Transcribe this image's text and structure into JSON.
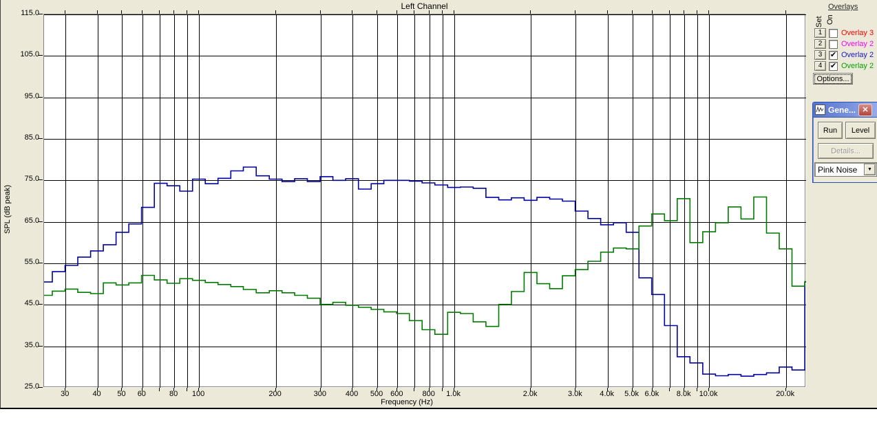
{
  "chart_data": {
    "type": "line",
    "subtype": "rta-stepped-spectrum",
    "title": "Left Channel",
    "xlabel": "Frequency (Hz)",
    "ylabel": "SPL (dB peak)",
    "x_scale": "log",
    "xlim": [
      24.7,
      24000
    ],
    "ylim": [
      25,
      115
    ],
    "grid": true,
    "y_tick_labels": [
      "115.0",
      "105.0",
      "95.0",
      "85.0",
      "75.0",
      "65.0",
      "55.0",
      "45.0",
      "35.0",
      "25.0"
    ],
    "y_ticks": [
      115,
      105,
      95,
      85,
      75,
      65,
      55,
      45,
      35,
      25
    ],
    "grid_freqs": [
      30,
      40,
      50,
      60,
      70,
      80,
      90,
      100,
      200,
      300,
      400,
      500,
      600,
      700,
      800,
      900,
      1000,
      2000,
      3000,
      4000,
      5000,
      6000,
      7000,
      8000,
      9000,
      10000,
      20000
    ],
    "x_tick_labels": [
      {
        "f": 30,
        "label": "30"
      },
      {
        "f": 40,
        "label": "40"
      },
      {
        "f": 50,
        "label": "50"
      },
      {
        "f": 60,
        "label": "60"
      },
      {
        "f": 80,
        "label": "80"
      },
      {
        "f": 100,
        "label": "100"
      },
      {
        "f": 200,
        "label": "200"
      },
      {
        "f": 300,
        "label": "300"
      },
      {
        "f": 400,
        "label": "400"
      },
      {
        "f": 500,
        "label": "500"
      },
      {
        "f": 600,
        "label": "600"
      },
      {
        "f": 800,
        "label": "800"
      },
      {
        "f": 1000,
        "label": "1.0k"
      },
      {
        "f": 2000,
        "label": "2.0k"
      },
      {
        "f": 3000,
        "label": "3.0k"
      },
      {
        "f": 4000,
        "label": "4.0k"
      },
      {
        "f": 5000,
        "label": "5.0k"
      },
      {
        "f": 6000,
        "label": "6.0k"
      },
      {
        "f": 8000,
        "label": "8.0k"
      },
      {
        "f": 10000,
        "label": "10.0k"
      },
      {
        "f": 20000,
        "label": "20.0k"
      }
    ],
    "frequencies": [
      25.1,
      28.2,
      31.6,
      35.5,
      39.8,
      44.7,
      50.1,
      56.2,
      63.1,
      70.8,
      79.4,
      89.1,
      100,
      112,
      126,
      141,
      158,
      178,
      200,
      224,
      251,
      282,
      316,
      355,
      398,
      447,
      501,
      562,
      631,
      708,
      794,
      891,
      1000,
      1122,
      1259,
      1413,
      1585,
      1778,
      1995,
      2239,
      2512,
      2818,
      3162,
      3548,
      3981,
      4467,
      5012,
      5623,
      6310,
      7079,
      7943,
      8913,
      10000,
      11220,
      12589,
      14125,
      15849,
      17783,
      19953,
      22387,
      25119
    ],
    "series": [
      {
        "name": "Overlay 2 (blue trace)",
        "color": "#0000a0",
        "values": [
          50.5,
          53.0,
          54.5,
          56.5,
          58.0,
          59.5,
          62.5,
          64.5,
          68.5,
          74.3,
          73.7,
          72.4,
          75.3,
          74.2,
          75.5,
          77.3,
          78.2,
          76.1,
          75.3,
          74.7,
          75.4,
          74.7,
          75.9,
          75.0,
          75.4,
          72.9,
          74.2,
          75.0,
          75.0,
          74.8,
          74.4,
          73.9,
          73.3,
          73.4,
          73.1,
          70.9,
          70.3,
          70.8,
          70.2,
          70.9,
          70.5,
          70.0,
          67.6,
          65.8,
          64.3,
          64.8,
          62.5,
          51.5,
          47.5,
          40.0,
          32.5,
          31.0,
          28.3,
          27.9,
          28.2,
          27.8,
          28.2,
          28.6,
          30.0,
          29.3,
          50.5
        ]
      },
      {
        "name": "Overlay 2 (green trace)",
        "color": "#007a00",
        "values": [
          47.3,
          48.3,
          48.8,
          48.0,
          47.7,
          50.3,
          49.8,
          50.3,
          52.1,
          51.0,
          50.2,
          51.3,
          50.9,
          50.4,
          49.9,
          49.4,
          48.7,
          47.9,
          48.4,
          47.9,
          47.3,
          46.6,
          45.1,
          45.6,
          44.9,
          44.4,
          43.9,
          43.3,
          42.9,
          41.2,
          39.0,
          37.9,
          43.2,
          42.9,
          40.9,
          39.8,
          45.1,
          48.2,
          52.8,
          50.1,
          48.9,
          52.0,
          53.5,
          55.5,
          57.7,
          58.7,
          58.5,
          64.0,
          66.9,
          65.3,
          70.6,
          60.0,
          62.6,
          64.8,
          68.6,
          65.7,
          71.0,
          62.3,
          58.5,
          49.5,
          50.6
        ]
      }
    ]
  },
  "overlays": {
    "title": "Overlays",
    "set_label": "Set",
    "on_label": "On",
    "rows": [
      {
        "num": "1",
        "label": "Overlay 3",
        "color": "#ff0000",
        "checked": false
      },
      {
        "num": "2",
        "label": "Overlay 2",
        "color": "#ff00ff",
        "checked": false
      },
      {
        "num": "3",
        "label": "Overlay 2",
        "color": "#1515cc",
        "checked": true
      },
      {
        "num": "4",
        "label": "Overlay 2",
        "color": "#00a000",
        "checked": true
      }
    ],
    "options_label": "Options...",
    "check_glyph": "✔"
  },
  "generator": {
    "title": "Gene...",
    "close_glyph": "✕",
    "run_label": "Run",
    "level_label": "Level",
    "details_label": "Details...",
    "signal_selected": "Pink Noise",
    "dropdown_glyph": "▼"
  }
}
